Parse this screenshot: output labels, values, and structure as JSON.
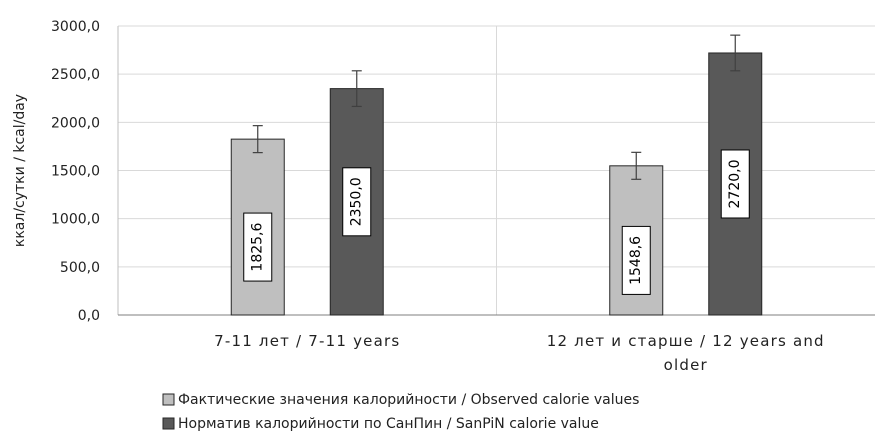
{
  "chart_data": {
    "type": "bar",
    "ylabel": "ккал/сутки / kcal/day",
    "ylim": [
      0,
      3000
    ],
    "ytick_step": 500,
    "ytick_labels": [
      "0,0",
      "500,0",
      "1000,0",
      "1500,0",
      "2000,0",
      "2500,0",
      "3000,0"
    ],
    "grid": true,
    "legend_position": "bottom-center",
    "categories": [
      [
        "7-11 лет / 7-11 years"
      ],
      [
        "12 лет и старше / 12  years and",
        "older"
      ]
    ],
    "series": [
      {
        "name": "Фактические значения калорийности / Observed calorie values",
        "color": "#bfbfbf",
        "values": [
          1825.6,
          1548.6
        ],
        "error": [
          140,
          140
        ],
        "labels": [
          "1825,6",
          "1548,6"
        ]
      },
      {
        "name": "Норматив калорийности по СанПин /  SanPiN calorie value",
        "color": "#595959",
        "values": [
          2350.0,
          2720.0
        ],
        "error": [
          185,
          185
        ],
        "labels": [
          "2350,0",
          "2720,0"
        ]
      }
    ]
  }
}
